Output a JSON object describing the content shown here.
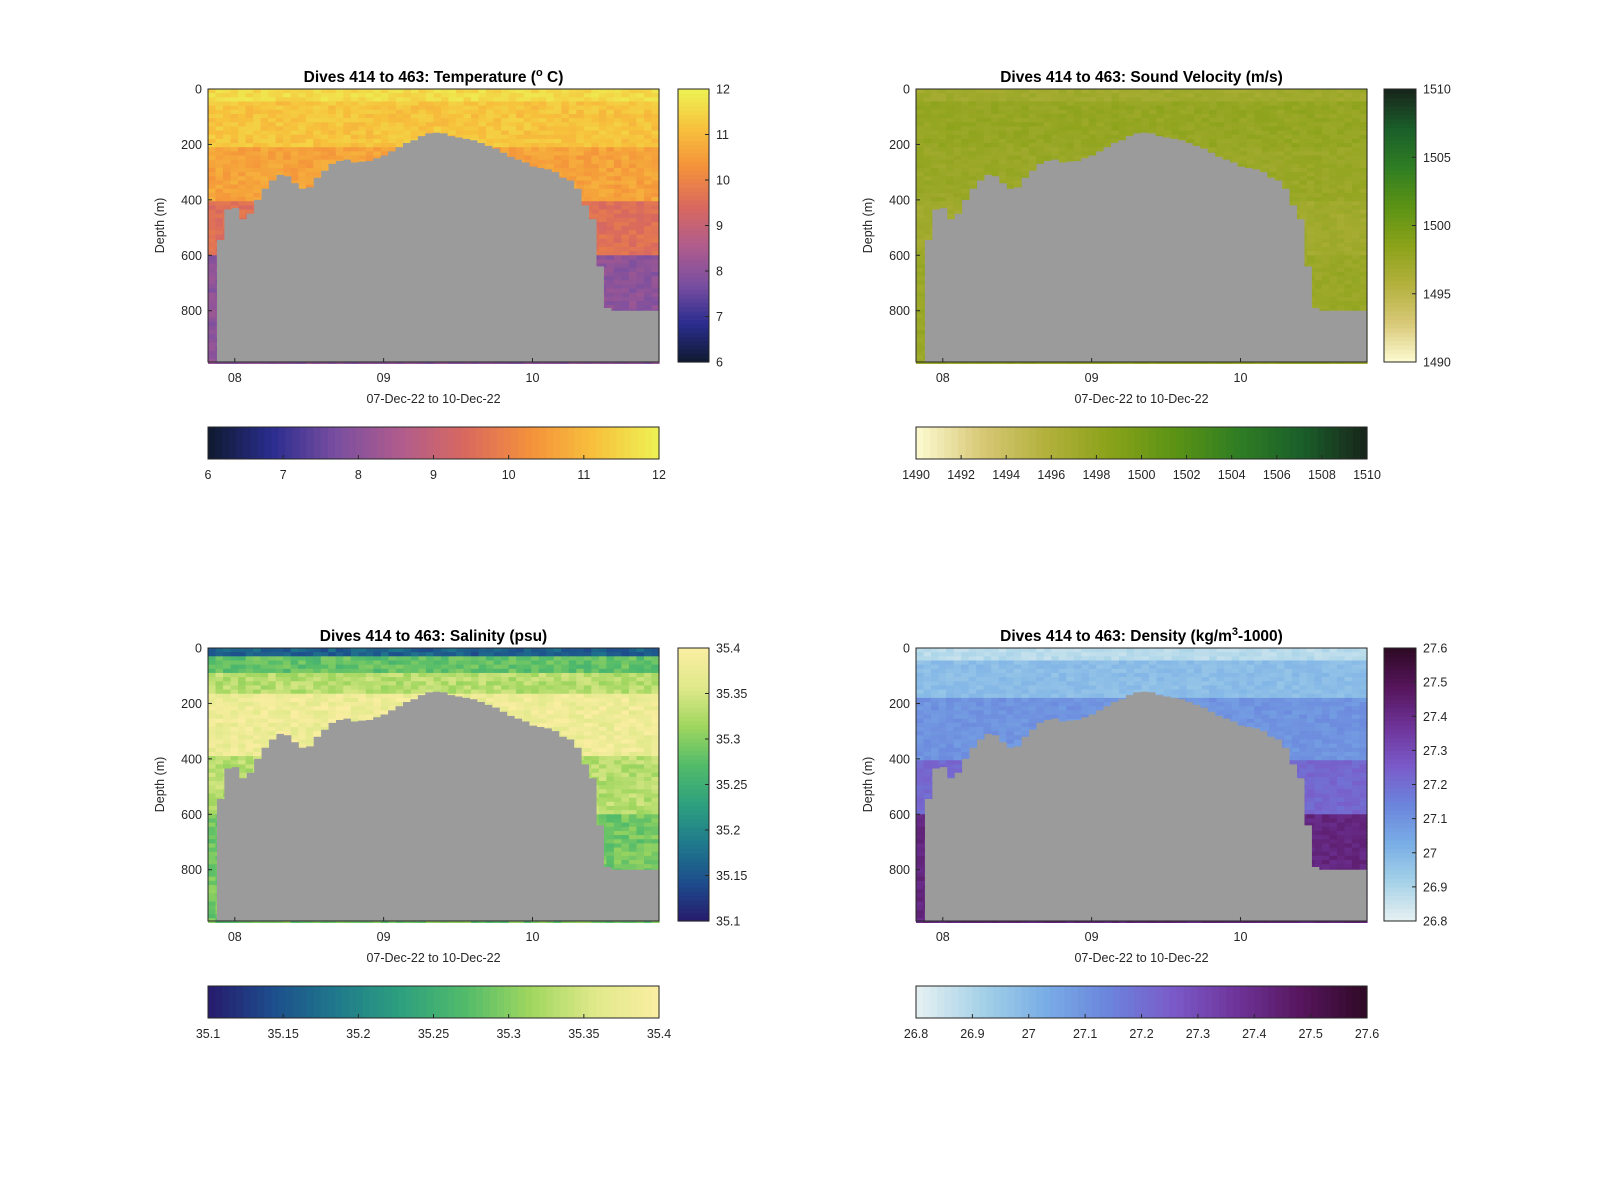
{
  "figure": {
    "background": "#ffffff"
  },
  "chart_data": [
    {
      "type": "heatmap",
      "title_main": "Dives 414 to 463: Temperature (",
      "title_sup": "o",
      "title_tail": " C)",
      "xlabel": "07-Dec-22 to 10-Dec-22",
      "ylabel": "Depth (m)",
      "x_ticks": [
        "08",
        "09",
        "10"
      ],
      "x_tick_values": [
        8,
        9,
        10
      ],
      "xlim": [
        7.82,
        10.85
      ],
      "y_ticks": [
        "0",
        "200",
        "400",
        "600",
        "800"
      ],
      "y_tick_values": [
        0,
        200,
        400,
        600,
        800
      ],
      "ylim": [
        0,
        985
      ],
      "y_reversed": true,
      "colormap": [
        "#0e1a2e",
        "#2b2d8f",
        "#7a4fa0",
        "#b05c8c",
        "#d9695f",
        "#f4913b",
        "#f7c13c",
        "#edf254"
      ],
      "clim": [
        6,
        12
      ],
      "right_colorbar_ticks": [
        "12",
        "11",
        "10",
        "9",
        "8",
        "7",
        "6"
      ],
      "bottom_colorbar_ticks": [
        "6",
        "7",
        "8",
        "9",
        "10",
        "11",
        "12"
      ],
      "surface_value": 11.5,
      "deep_value": 8.2,
      "layers": [
        {
          "max_depth": 40,
          "value": 11.6
        },
        {
          "max_depth": 200,
          "value": 11.2
        },
        {
          "max_depth": 400,
          "value": 10.6
        },
        {
          "max_depth": 600,
          "value": 9.6
        },
        {
          "max_depth": 985,
          "value": 8.0
        }
      ],
      "variability": 0.25
    },
    {
      "type": "heatmap",
      "title_main": "Dives 414 to 463: Sound Velocity (m/s)",
      "title_sup": "",
      "title_tail": "",
      "xlabel": "07-Dec-22 to 10-Dec-22",
      "ylabel": "Depth (m)",
      "x_ticks": [
        "08",
        "09",
        "10"
      ],
      "x_tick_values": [
        8,
        9,
        10
      ],
      "xlim": [
        7.82,
        10.85
      ],
      "y_ticks": [
        "0",
        "200",
        "400",
        "600",
        "800"
      ],
      "y_tick_values": [
        0,
        200,
        400,
        600,
        800
      ],
      "ylim": [
        0,
        985
      ],
      "y_reversed": true,
      "colormap": [
        "#fdfbd2",
        "#d8c978",
        "#b3b13d",
        "#8aa219",
        "#5c9315",
        "#2f7e23",
        "#1a5e2a",
        "#18241b"
      ],
      "clim": [
        1490,
        1510
      ],
      "right_colorbar_ticks": [
        "1510",
        "1505",
        "1500",
        "1495",
        "1490"
      ],
      "bottom_colorbar_ticks": [
        "1490",
        "1492",
        "1494",
        "1496",
        "1498",
        "1500",
        "1502",
        "1504",
        "1506",
        "1508",
        "1510"
      ],
      "layers": [
        {
          "max_depth": 40,
          "value": 1497.0
        },
        {
          "max_depth": 200,
          "value": 1497.8
        },
        {
          "max_depth": 400,
          "value": 1497.5
        },
        {
          "max_depth": 600,
          "value": 1497.0
        },
        {
          "max_depth": 985,
          "value": 1497.5
        }
      ],
      "variability": 0.5
    },
    {
      "type": "heatmap",
      "title_main": "Dives 414 to 463: Salinity (psu)",
      "title_sup": "",
      "title_tail": "",
      "xlabel": "07-Dec-22 to 10-Dec-22",
      "ylabel": "Depth (m)",
      "x_ticks": [
        "08",
        "09",
        "10"
      ],
      "x_tick_values": [
        8,
        9,
        10
      ],
      "xlim": [
        7.82,
        10.85
      ],
      "y_ticks": [
        "0",
        "200",
        "400",
        "600",
        "800"
      ],
      "y_tick_values": [
        0,
        200,
        400,
        600,
        800
      ],
      "ylim": [
        0,
        985
      ],
      "y_reversed": true,
      "colormap": [
        "#271a6d",
        "#1d4d8c",
        "#1f7a8c",
        "#2ea07e",
        "#52bb6a",
        "#9fd65f",
        "#dfe98a",
        "#fbeea2"
      ],
      "clim": [
        35.1,
        35.4
      ],
      "right_colorbar_ticks": [
        "35.4",
        "35.35",
        "35.3",
        "35.25",
        "35.2",
        "35.15",
        "35.1"
      ],
      "bottom_colorbar_ticks": [
        "35.1",
        "35.15",
        "35.2",
        "35.25",
        "35.3",
        "35.35",
        "35.4"
      ],
      "layers": [
        {
          "max_depth": 25,
          "value": 35.16
        },
        {
          "max_depth": 90,
          "value": 35.28
        },
        {
          "max_depth": 160,
          "value": 35.33
        },
        {
          "max_depth": 380,
          "value": 35.38
        },
        {
          "max_depth": 600,
          "value": 35.33
        },
        {
          "max_depth": 985,
          "value": 35.29
        }
      ],
      "variability": 0.02
    },
    {
      "type": "heatmap",
      "title_main": "Dives 414 to 463: Density (kg/m",
      "title_sup": "3",
      "title_tail": "-1000)",
      "xlabel": "07-Dec-22 to 10-Dec-22",
      "ylabel": "Depth (m)",
      "x_ticks": [
        "08",
        "09",
        "10"
      ],
      "x_tick_values": [
        8,
        9,
        10
      ],
      "xlim": [
        7.82,
        10.85
      ],
      "y_ticks": [
        "0",
        "200",
        "400",
        "600",
        "800"
      ],
      "y_tick_values": [
        0,
        200,
        400,
        600,
        800
      ],
      "ylim": [
        0,
        985
      ],
      "y_reversed": true,
      "colormap": [
        "#e7f1f2",
        "#a6d2e8",
        "#79aee6",
        "#6b84dc",
        "#7a5ac8",
        "#6e3398",
        "#56155c",
        "#2e0a24"
      ],
      "clim": [
        26.8,
        27.6
      ],
      "right_colorbar_ticks": [
        "27.6",
        "27.5",
        "27.4",
        "27.3",
        "27.2",
        "27.1",
        "27",
        "26.9",
        "26.8"
      ],
      "bottom_colorbar_ticks": [
        "26.8",
        "26.9",
        "27",
        "27.1",
        "27.2",
        "27.3",
        "27.4",
        "27.5",
        "27.6"
      ],
      "layers": [
        {
          "max_depth": 40,
          "value": 26.88
        },
        {
          "max_depth": 180,
          "value": 26.98
        },
        {
          "max_depth": 400,
          "value": 27.1
        },
        {
          "max_depth": 600,
          "value": 27.22
        },
        {
          "max_depth": 985,
          "value": 27.42
        }
      ],
      "variability": 0.025
    }
  ],
  "bathymetry": {
    "fill_color": "#9b9b9b",
    "note_values_are_seafloor_depth_m": true,
    "x": [
      7.82,
      7.88,
      7.93,
      7.98,
      8.03,
      8.08,
      8.13,
      8.18,
      8.23,
      8.28,
      8.33,
      8.38,
      8.43,
      8.48,
      8.53,
      8.58,
      8.63,
      8.68,
      8.73,
      8.78,
      8.83,
      8.88,
      8.93,
      8.98,
      9.03,
      9.08,
      9.13,
      9.18,
      9.23,
      9.28,
      9.33,
      9.38,
      9.43,
      9.48,
      9.53,
      9.58,
      9.63,
      9.68,
      9.73,
      9.78,
      9.83,
      9.88,
      9.93,
      9.98,
      10.03,
      10.08,
      10.13,
      10.18,
      10.23,
      10.28,
      10.33,
      10.38,
      10.43,
      10.48,
      10.53,
      10.58,
      10.63,
      10.68,
      10.73,
      10.78,
      10.85
    ],
    "depth": [
      985,
      545,
      435,
      430,
      470,
      450,
      400,
      360,
      330,
      310,
      315,
      340,
      360,
      355,
      320,
      295,
      270,
      260,
      255,
      265,
      262,
      260,
      250,
      240,
      225,
      210,
      195,
      185,
      170,
      160,
      158,
      160,
      170,
      175,
      180,
      185,
      195,
      205,
      215,
      230,
      245,
      255,
      265,
      280,
      285,
      290,
      300,
      320,
      330,
      360,
      420,
      470,
      640,
      790,
      800,
      800,
      800,
      800,
      800,
      800,
      800
    ]
  }
}
